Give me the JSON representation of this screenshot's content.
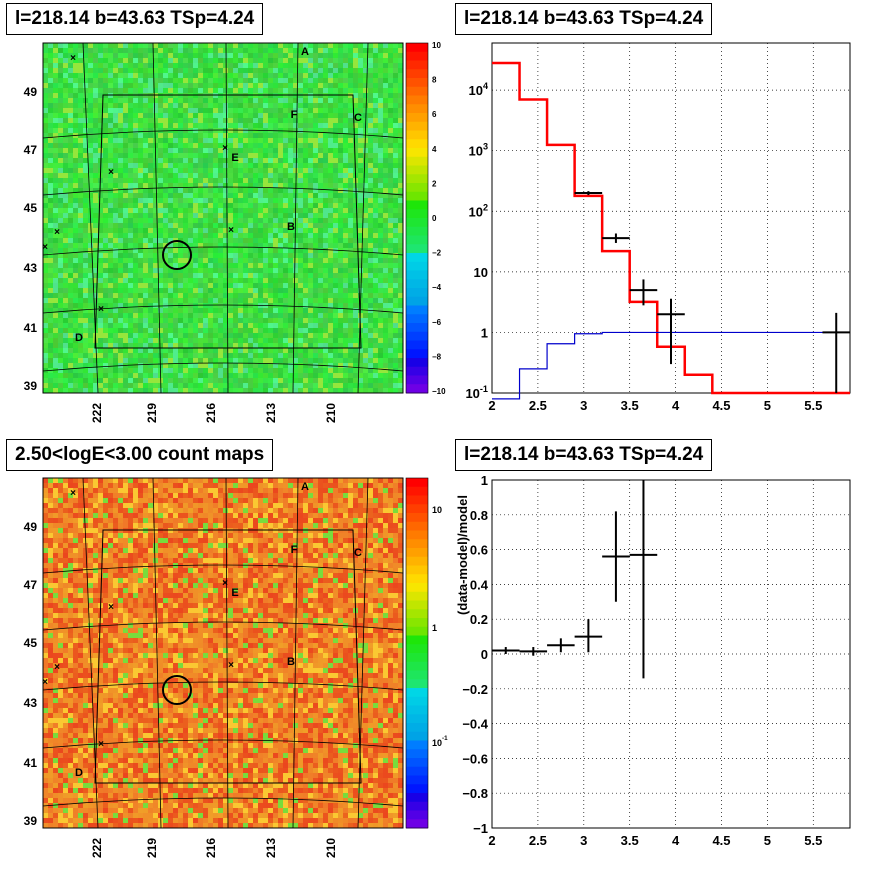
{
  "panels": {
    "top_left_title": "l=218.14 b=43.63 TSp=4.24",
    "top_right_title": "l=218.14 b=43.63 TSp=4.24",
    "bottom_left_title": "2.50<logE<3.00 count maps",
    "bottom_right_title": "l=218.14 b=43.63 TSp=4.24"
  },
  "chart_data": [
    {
      "type": "heatmap",
      "title": "l=218.14 b=43.63 TSp=4.24",
      "x_ticks": [
        "222",
        "219",
        "216",
        "213",
        "210"
      ],
      "y_ticks": [
        "49",
        "47",
        "45",
        "43",
        "41",
        "39"
      ],
      "colorbar": {
        "min": -10,
        "max": 10,
        "ticks": [
          "10",
          "8",
          "6",
          "4",
          "2",
          "0",
          "−2",
          "−4",
          "−6",
          "−8",
          "−10"
        ]
      },
      "sources": [
        "A",
        "F",
        "C",
        "E",
        "B",
        "D"
      ],
      "color": "#33dd33"
    },
    {
      "type": "line",
      "title": "l=218.14 b=43.63 TSp=4.24",
      "x_ticks": [
        "2",
        "2.5",
        "3",
        "3.5",
        "4",
        "4.5",
        "5",
        "5.5"
      ],
      "y_ticks": [
        "10^{-1}",
        "1",
        "10",
        "10^{2}",
        "10^{3}",
        "10^{4}"
      ],
      "xlim": [
        2,
        5.9
      ],
      "ylim": [
        0.1,
        60000
      ],
      "log_y": true,
      "grid": true,
      "series": [
        {
          "color": "#ff0000",
          "bin_edges": [
            2.0,
            2.3,
            2.6,
            2.9,
            3.2,
            3.5,
            3.8,
            4.1,
            4.4,
            5.9
          ],
          "values": [
            28000,
            7000,
            1250,
            180,
            22,
            3.2,
            0.58,
            0.2,
            0.1
          ]
        },
        {
          "color": "#0000cc",
          "bin_edges": [
            2.0,
            2.3,
            2.6,
            2.9,
            3.2,
            5.9
          ],
          "values": [
            0.08,
            0.25,
            0.65,
            0.95,
            1.0
          ]
        },
        {
          "color": "#000000",
          "type": "errorbars",
          "points": [
            {
              "x": 3.05,
              "y": 200,
              "xerr": 0.15,
              "ylo": 185,
              "yhi": 215
            },
            {
              "x": 3.35,
              "y": 36,
              "xerr": 0.15,
              "ylo": 30,
              "yhi": 43
            },
            {
              "x": 3.65,
              "y": 5,
              "xerr": 0.15,
              "ylo": 2.8,
              "yhi": 7.5
            },
            {
              "x": 3.95,
              "y": 2,
              "xerr": 0.15,
              "ylo": 0.3,
              "yhi": 3.6
            },
            {
              "x": 5.75,
              "y": 1,
              "xerr": 0.15,
              "ylo": 0.1,
              "yhi": 2.1
            }
          ]
        }
      ]
    },
    {
      "type": "heatmap",
      "title": "2.50<logE<3.00 count maps",
      "x_ticks": [
        "222",
        "219",
        "216",
        "213",
        "210"
      ],
      "y_ticks": [
        "49",
        "47",
        "45",
        "43",
        "41",
        "39"
      ],
      "colorbar": {
        "ticks": [
          "10",
          "1",
          "10^{-1}"
        ]
      },
      "sources": [
        "A",
        "F",
        "C",
        "E",
        "B",
        "D"
      ],
      "color": "#ee8822"
    },
    {
      "type": "scatter",
      "title": "l=218.14 b=43.63 TSp=4.24",
      "ylabel": "(data-model)/model",
      "x_ticks": [
        "2",
        "2.5",
        "3",
        "3.5",
        "4",
        "4.5",
        "5",
        "5.5"
      ],
      "y_ticks": [
        "1",
        "0.8",
        "0.6",
        "0.4",
        "0.2",
        "0",
        "−0.2",
        "−0.4",
        "−0.6",
        "−0.8",
        "−1"
      ],
      "xlim": [
        2,
        5.9
      ],
      "ylim": [
        -1,
        1
      ],
      "grid": true,
      "points": [
        {
          "x": 2.15,
          "y": 0.02,
          "xerr": 0.15,
          "ylo": 0.0,
          "yhi": 0.04
        },
        {
          "x": 2.45,
          "y": 0.015,
          "xerr": 0.15,
          "ylo": -0.01,
          "yhi": 0.04
        },
        {
          "x": 2.75,
          "y": 0.05,
          "xerr": 0.15,
          "ylo": 0.01,
          "yhi": 0.09
        },
        {
          "x": 3.05,
          "y": 0.1,
          "xerr": 0.15,
          "ylo": 0.01,
          "yhi": 0.2
        },
        {
          "x": 3.35,
          "y": 0.56,
          "xerr": 0.15,
          "ylo": 0.3,
          "yhi": 0.82
        },
        {
          "x": 3.65,
          "y": 0.57,
          "xerr": 0.15,
          "ylo": -0.14,
          "yhi": 1.0
        }
      ]
    }
  ]
}
